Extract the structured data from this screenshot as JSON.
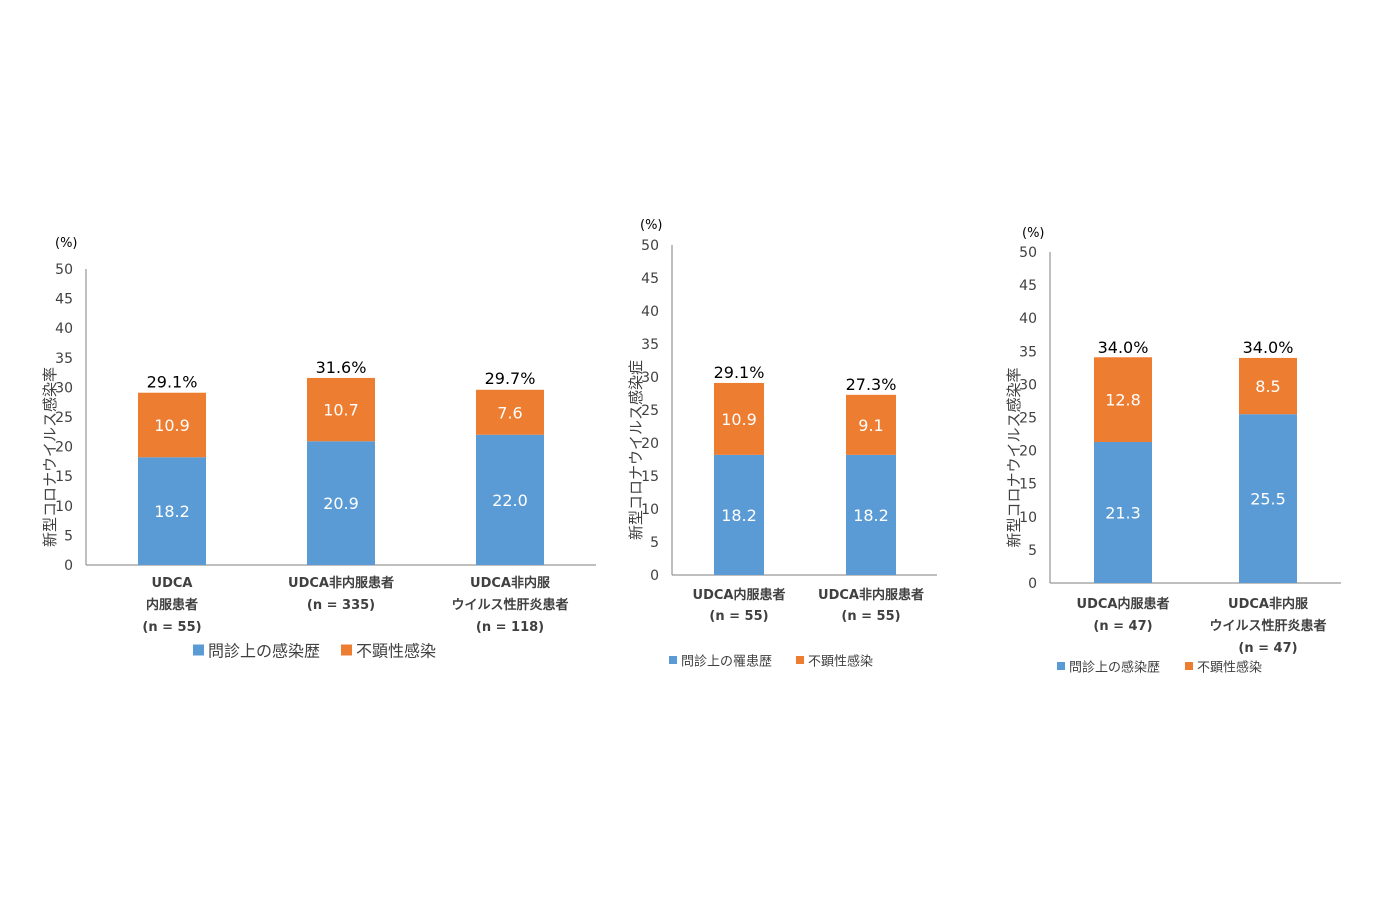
{
  "colors": {
    "history": "#5b9bd5",
    "asymptomatic": "#ed7d31",
    "axis": "#7f7f7f",
    "tick_text": "#404040",
    "total_text": "#000000",
    "inner_text": "#ffffff",
    "category_text": "#404040"
  },
  "chart_data": [
    {
      "type": "bar",
      "stacked": true,
      "unit_label": "(%)",
      "ylabel": "新型コロナウイルス感染率",
      "ylim": [
        0,
        50
      ],
      "yticks": [
        0,
        5,
        10,
        15,
        20,
        25,
        30,
        35,
        40,
        45,
        50
      ],
      "categories": [
        [
          "UDCA",
          "内服患者",
          "(n = 55)"
        ],
        [
          "UDCA非内服患者",
          "(n = 335)"
        ],
        [
          "UDCA非内服",
          "ウイルス性肝炎患者",
          "(n = 118)"
        ]
      ],
      "series": [
        {
          "name": "問診上の感染歴",
          "values": [
            18.2,
            20.9,
            22.0
          ],
          "labels": [
            "18.2",
            "20.9",
            "22.0"
          ]
        },
        {
          "name": "不顕性感染",
          "values": [
            10.9,
            10.7,
            7.6
          ],
          "labels": [
            "10.9",
            "10.7",
            "7.6"
          ]
        }
      ],
      "totals": [
        29.1,
        31.6,
        29.7
      ],
      "total_labels": [
        "29.1%",
        "31.6%",
        "29.7%"
      ],
      "legend_position": "bottom",
      "grid": false
    },
    {
      "type": "bar",
      "stacked": true,
      "unit_label": "(%)",
      "ylabel": "新型コロナウイルス感染症",
      "ylim": [
        0,
        50
      ],
      "yticks": [
        0,
        5,
        10,
        15,
        20,
        25,
        30,
        35,
        40,
        45,
        50
      ],
      "categories": [
        [
          "UDCA内服患者",
          "(n = 55)"
        ],
        [
          "UDCA非内服患者",
          "(n = 55)"
        ]
      ],
      "series": [
        {
          "name": "問診上の罹患歴",
          "values": [
            18.2,
            18.2
          ],
          "labels": [
            "18.2",
            "18.2"
          ]
        },
        {
          "name": "不顕性感染",
          "values": [
            10.9,
            9.1
          ],
          "labels": [
            "10.9",
            "9.1"
          ]
        }
      ],
      "totals": [
        29.1,
        27.3
      ],
      "total_labels": [
        "29.1%",
        "27.3%"
      ],
      "legend_position": "bottom",
      "grid": false
    },
    {
      "type": "bar",
      "stacked": true,
      "unit_label": "(%)",
      "ylabel": "新型コロナウイルス感染率",
      "ylim": [
        0,
        50
      ],
      "yticks": [
        0,
        5,
        10,
        15,
        20,
        25,
        30,
        35,
        40,
        45,
        50
      ],
      "categories": [
        [
          "UDCA内服患者",
          "(n = 47)"
        ],
        [
          "UDCA非内服",
          "ウイルス性肝炎患者",
          "(n = 47)"
        ]
      ],
      "series": [
        {
          "name": "問診上の感染歴",
          "values": [
            21.3,
            25.5
          ],
          "labels": [
            "21.3",
            "25.5"
          ]
        },
        {
          "name": "不顕性感染",
          "values": [
            12.8,
            8.5
          ],
          "labels": [
            "12.8",
            "8.5"
          ]
        }
      ],
      "totals": [
        34.0,
        34.0
      ],
      "total_labels": [
        "34.0%",
        "34.0%"
      ],
      "legend_position": "bottom",
      "grid": false
    }
  ]
}
